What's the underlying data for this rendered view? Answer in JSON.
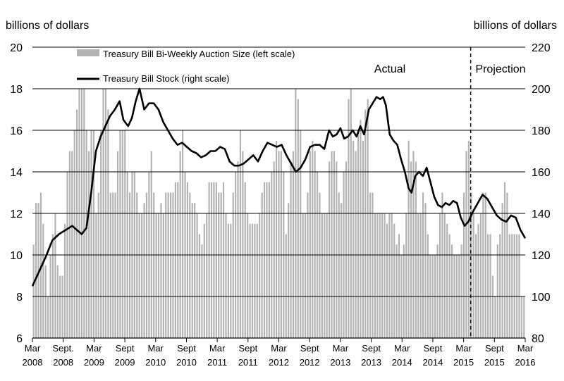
{
  "chart_data": {
    "type": "bar+line",
    "left_axis": {
      "label": "billions of dollars",
      "ticks": [
        6,
        8,
        10,
        12,
        14,
        16,
        18,
        20
      ],
      "range": [
        6,
        20
      ]
    },
    "right_axis": {
      "label": "billions of dollars",
      "ticks": [
        80,
        100,
        120,
        140,
        160,
        180,
        200,
        220
      ],
      "range": [
        80,
        220
      ]
    },
    "x_ticks": [
      {
        "l1": "Mar",
        "l2": "2008"
      },
      {
        "l1": "Sept.",
        "l2": "2008"
      },
      {
        "l1": "Mar",
        "l2": "2009"
      },
      {
        "l1": "Sept",
        "l2": "2009"
      },
      {
        "l1": "Mar",
        "l2": "2010"
      },
      {
        "l1": "Sept",
        "l2": "2010"
      },
      {
        "l1": "Mar",
        "l2": "2011"
      },
      {
        "l1": "Sept",
        "l2": "2011"
      },
      {
        "l1": "Mar",
        "l2": "2012"
      },
      {
        "l1": "Sept",
        "l2": "2012"
      },
      {
        "l1": "Mar",
        "l2": "2013"
      },
      {
        "l1": "Sept",
        "l2": "2013"
      },
      {
        "l1": "Mar",
        "l2": "2014"
      },
      {
        "l1": "Sept",
        "l2": "2014"
      },
      {
        "l1": "Mar",
        "l2": "2015"
      },
      {
        "l1": "Sept",
        "l2": "2015"
      },
      {
        "l1": "Mar",
        "l2": "2016"
      }
    ],
    "legend": {
      "bars": "Treasury Bill Bi-Weekly Auction Size (left scale)",
      "line": "Treasury Bill Stock (right scale)"
    },
    "annotations": {
      "actual": "Actual",
      "projection": "Projection"
    },
    "projection_start_period_index": 14,
    "bar_series": [
      10.5,
      12.5,
      12.5,
      13,
      11.5,
      9.5,
      8,
      10,
      11,
      12,
      9.5,
      9,
      9,
      11.5,
      14,
      15,
      15,
      16,
      17,
      18,
      18,
      18,
      16,
      15,
      16,
      16,
      12,
      13,
      16,
      18,
      18,
      17,
      13,
      13,
      13,
      15,
      16,
      16,
      16,
      14,
      13,
      14,
      14,
      13,
      12,
      12,
      12.5,
      13,
      14,
      15,
      13,
      12,
      12,
      12.5,
      12,
      13,
      13,
      13,
      13,
      13.5,
      13.5,
      15,
      16,
      14,
      13.5,
      13,
      12.5,
      12.5,
      12,
      11,
      10.5,
      11.5,
      12,
      13.5,
      13.5,
      13.5,
      13.5,
      13,
      13,
      13.5,
      12,
      11.5,
      11.5,
      13,
      14,
      14.5,
      16,
      15,
      13.5,
      12,
      11.5,
      11.5,
      11.5,
      11.5,
      12,
      13,
      13.5,
      13.5,
      13.5,
      14,
      14.5,
      15.5,
      15,
      15,
      14,
      11,
      12.5,
      14.5,
      15,
      18,
      17.5,
      16,
      12,
      12,
      13,
      15,
      15.5,
      15,
      14,
      13,
      12,
      12,
      12,
      14.5,
      15,
      15,
      14.5,
      13,
      12.5,
      14,
      14.5,
      17.5,
      18,
      15.5,
      15,
      16,
      16.5,
      15.5,
      17,
      17.5,
      13,
      13,
      12,
      12,
      12,
      12,
      12,
      11.5,
      12,
      12,
      11.5,
      10.5,
      11,
      10,
      10.5,
      12,
      15.5,
      14.5,
      15,
      14.5,
      12,
      12,
      13,
      12.5,
      11,
      10,
      10,
      10,
      10.5,
      12,
      13,
      12,
      11.5,
      11,
      10.5,
      10,
      10,
      10,
      10.5,
      13,
      15,
      15.5,
      13,
      12,
      11,
      11.5,
      12,
      13,
      13,
      11,
      11,
      9,
      8,
      10.5,
      11,
      12.5,
      13.5,
      13,
      11,
      11,
      11,
      11,
      11,
      8,
      8
    ],
    "bar_base": 8,
    "line_series": [
      {
        "t": 0,
        "v": 105
      },
      {
        "t": 0.7,
        "v": 112
      },
      {
        "t": 1.4,
        "v": 119
      },
      {
        "t": 2.1,
        "v": 127
      },
      {
        "t": 2.8,
        "v": 130
      },
      {
        "t": 3.5,
        "v": 132
      },
      {
        "t": 4.2,
        "v": 134
      },
      {
        "t": 4.7,
        "v": 132
      },
      {
        "t": 5.2,
        "v": 130
      },
      {
        "t": 5.7,
        "v": 133
      },
      {
        "t": 6.2,
        "v": 150
      },
      {
        "t": 6.7,
        "v": 170
      },
      {
        "t": 7.2,
        "v": 177
      },
      {
        "t": 7.7,
        "v": 182
      },
      {
        "t": 8.2,
        "v": 187
      },
      {
        "t": 8.7,
        "v": 190
      },
      {
        "t": 9.2,
        "v": 194
      },
      {
        "t": 9.6,
        "v": 185
      },
      {
        "t": 10.1,
        "v": 182
      },
      {
        "t": 10.5,
        "v": 186
      },
      {
        "t": 10.9,
        "v": 194
      },
      {
        "t": 11.3,
        "v": 200
      },
      {
        "t": 11.8,
        "v": 190
      },
      {
        "t": 12.3,
        "v": 193
      },
      {
        "t": 12.8,
        "v": 193
      },
      {
        "t": 13.3,
        "v": 190
      },
      {
        "t": 13.8,
        "v": 184
      },
      {
        "t": 14.3,
        "v": 180
      },
      {
        "t": 14.8,
        "v": 176
      },
      {
        "t": 15.3,
        "v": 173
      },
      {
        "t": 15.8,
        "v": 174
      },
      {
        "t": 16.3,
        "v": 172
      },
      {
        "t": 16.8,
        "v": 170
      },
      {
        "t": 17.3,
        "v": 169
      },
      {
        "t": 17.8,
        "v": 167
      },
      {
        "t": 18.3,
        "v": 168
      },
      {
        "t": 18.8,
        "v": 170
      },
      {
        "t": 19.3,
        "v": 170
      },
      {
        "t": 19.8,
        "v": 172
      },
      {
        "t": 20.3,
        "v": 171
      },
      {
        "t": 20.8,
        "v": 165
      },
      {
        "t": 21.3,
        "v": 163
      },
      {
        "t": 21.8,
        "v": 163
      },
      {
        "t": 22.3,
        "v": 164
      },
      {
        "t": 22.8,
        "v": 166
      },
      {
        "t": 23.3,
        "v": 168
      },
      {
        "t": 23.8,
        "v": 165
      },
      {
        "t": 24.3,
        "v": 170
      },
      {
        "t": 24.8,
        "v": 174
      },
      {
        "t": 25.3,
        "v": 173
      },
      {
        "t": 25.8,
        "v": 172
      },
      {
        "t": 26.3,
        "v": 173
      },
      {
        "t": 26.8,
        "v": 168
      },
      {
        "t": 27.3,
        "v": 164
      },
      {
        "t": 27.8,
        "v": 160
      },
      {
        "t": 28.3,
        "v": 162
      },
      {
        "t": 28.8,
        "v": 166
      },
      {
        "t": 29.3,
        "v": 172
      },
      {
        "t": 29.8,
        "v": 173
      },
      {
        "t": 30.3,
        "v": 173
      },
      {
        "t": 30.8,
        "v": 171
      },
      {
        "t": 31.3,
        "v": 180
      },
      {
        "t": 31.7,
        "v": 177
      },
      {
        "t": 32.1,
        "v": 178
      },
      {
        "t": 32.5,
        "v": 181
      },
      {
        "t": 32.9,
        "v": 176
      },
      {
        "t": 33.3,
        "v": 177
      },
      {
        "t": 33.8,
        "v": 180
      },
      {
        "t": 34.2,
        "v": 177
      },
      {
        "t": 34.6,
        "v": 182
      },
      {
        "t": 35.0,
        "v": 178
      },
      {
        "t": 35.5,
        "v": 190
      },
      {
        "t": 35.9,
        "v": 193
      },
      {
        "t": 36.3,
        "v": 196
      },
      {
        "t": 36.7,
        "v": 195
      },
      {
        "t": 37.0,
        "v": 196
      },
      {
        "t": 37.3,
        "v": 192
      },
      {
        "t": 37.7,
        "v": 178
      },
      {
        "t": 38.1,
        "v": 175
      },
      {
        "t": 38.5,
        "v": 173
      },
      {
        "t": 38.9,
        "v": 166
      },
      {
        "t": 39.3,
        "v": 160
      },
      {
        "t": 39.7,
        "v": 152
      },
      {
        "t": 40.0,
        "v": 150
      },
      {
        "t": 40.4,
        "v": 158
      },
      {
        "t": 40.8,
        "v": 160
      },
      {
        "t": 41.2,
        "v": 158
      },
      {
        "t": 41.6,
        "v": 162
      },
      {
        "t": 42.0,
        "v": 155
      },
      {
        "t": 42.4,
        "v": 148
      },
      {
        "t": 42.8,
        "v": 144
      },
      {
        "t": 43.2,
        "v": 143
      },
      {
        "t": 43.6,
        "v": 145
      },
      {
        "t": 44.0,
        "v": 144
      },
      {
        "t": 44.4,
        "v": 146
      },
      {
        "t": 44.8,
        "v": 145
      },
      {
        "t": 45.2,
        "v": 138
      },
      {
        "t": 45.6,
        "v": 134
      },
      {
        "t": 46.0,
        "v": 136
      },
      {
        "t": 46.5,
        "v": 141
      },
      {
        "t": 47.0,
        "v": 145
      },
      {
        "t": 47.5,
        "v": 149
      },
      {
        "t": 48.0,
        "v": 147
      },
      {
        "t": 48.5,
        "v": 143
      },
      {
        "t": 49.0,
        "v": 139
      },
      {
        "t": 49.5,
        "v": 137
      },
      {
        "t": 50.0,
        "v": 136
      },
      {
        "t": 50.5,
        "v": 139
      },
      {
        "t": 51.0,
        "v": 138
      },
      {
        "t": 51.5,
        "v": 132
      },
      {
        "t": 52.0,
        "v": 128
      }
    ],
    "line_t_max": 52
  }
}
